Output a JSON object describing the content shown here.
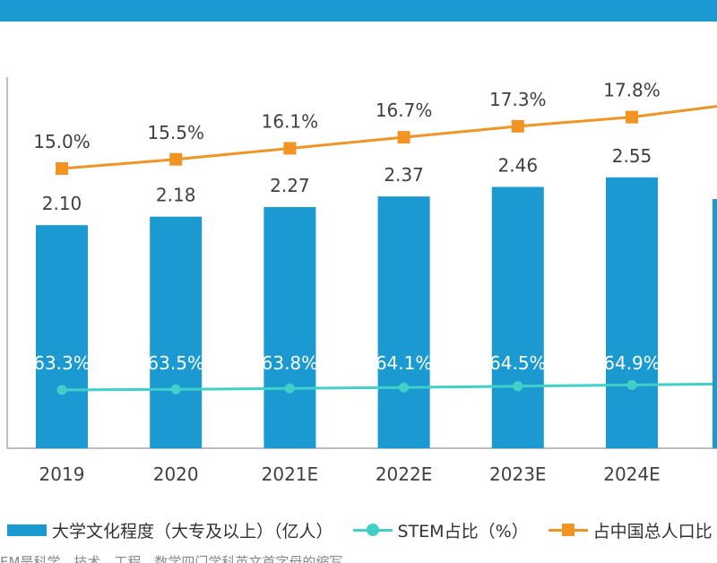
{
  "chart_data": {
    "type": "bar",
    "categories": [
      "2019",
      "2020",
      "2021E",
      "2022E",
      "2023E",
      "2024E"
    ],
    "series": [
      {
        "name": "大学文化程度（大专及以上）（亿人）",
        "type": "bar",
        "color": "#1a9ad1",
        "values": [
          2.1,
          2.18,
          2.27,
          2.37,
          2.46,
          2.55
        ],
        "labels": [
          "2.10",
          "2.18",
          "2.27",
          "2.37",
          "2.46",
          "2.55"
        ]
      },
      {
        "name": "STEM占比（%）",
        "type": "line",
        "color": "#40d0c8",
        "values": [
          63.3,
          63.5,
          63.8,
          64.1,
          64.5,
          64.9
        ],
        "labels": [
          "63.3%",
          "63.5%",
          "63.8%",
          "64.1%",
          "64.5%",
          "64.9%"
        ]
      },
      {
        "name": "占中国总人口比",
        "type": "line",
        "color": "#f29423",
        "values": [
          15.0,
          15.5,
          16.1,
          16.7,
          17.3,
          17.8
        ],
        "labels": [
          "15.0%",
          "15.5%",
          "16.1%",
          "16.7%",
          "17.3%",
          "17.8%"
        ]
      }
    ],
    "legend": "bottom",
    "grid": false
  },
  "footnote": "EM是科学、技术、工程、数学四门学科英文首字母的缩写"
}
